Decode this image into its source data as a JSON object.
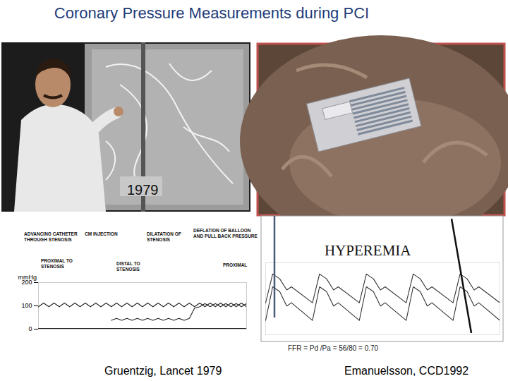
{
  "title": "Coronary Pressure Measurements during PCI",
  "photo_label": "1979",
  "chart_data": [
    {
      "type": "line",
      "caption": "Gruentzig, Lancet 1979",
      "ylabel": "mmHg",
      "xlim": [
        0,
        100
      ],
      "ylim": [
        0,
        200
      ],
      "yticks": [
        0,
        100,
        200
      ],
      "tick_labels": "y",
      "annotations": [
        [
          "ADVANCING CATHETER",
          "THROUGH STENOSIS"
        ],
        [
          "CM INJECTION"
        ],
        [
          "DILATATION OF",
          "STENOSIS"
        ],
        [
          "DEFLATION OF BALLOON",
          "AND PULL BACK PRESSURE"
        ],
        [
          "PROXIMAL TO",
          "STENOSIS"
        ],
        [
          "DISTAL TO",
          "STENOSIS"
        ],
        [
          "PROXIMAL"
        ]
      ],
      "series": [
        {
          "color": "#222222",
          "x": [
            0,
            2.5,
            5,
            7.5,
            10,
            12.5,
            15,
            17.5,
            20,
            22.5,
            25,
            27.5,
            30,
            32.5,
            35,
            37.5,
            40,
            42.5,
            45,
            47.5,
            50,
            52.5,
            55,
            57.5,
            60,
            62.5,
            65,
            67.5,
            70,
            72.5,
            75,
            77.5,
            80,
            82.5,
            85,
            87.5,
            90,
            92.5,
            95,
            97.5,
            100
          ],
          "values": [
            96,
            112,
            96,
            112,
            96,
            112,
            96,
            112,
            96,
            112,
            96,
            112,
            96,
            112,
            96,
            112,
            96,
            112,
            96,
            112,
            96,
            112,
            96,
            112,
            96,
            112,
            96,
            112,
            96,
            112,
            96,
            112,
            96,
            112,
            96,
            112,
            96,
            112,
            96,
            112,
            96
          ]
        },
        {
          "color": "#222222",
          "x": [
            35,
            37.5,
            40,
            42.5,
            45,
            47.5,
            50,
            52.5,
            55,
            57.5,
            60,
            62.5,
            65,
            67.5,
            70,
            72.5,
            75,
            77.5,
            80,
            82.5,
            85,
            87.5,
            90,
            92.5,
            95,
            97.5,
            100
          ],
          "values": [
            38,
            46,
            38,
            46,
            38,
            46,
            38,
            46,
            38,
            46,
            38,
            46,
            38,
            46,
            38,
            46,
            90,
            96,
            110,
            96,
            110,
            96,
            110,
            96,
            110,
            96,
            110
          ]
        },
        {
          "color": "#222222",
          "x": [
            0,
            100
          ],
          "values": [
            3,
            3
          ]
        }
      ]
    },
    {
      "type": "line",
      "caption": "Emanuelsson, CCD1992",
      "annotation": "HYPEREMIA",
      "formula": "FFR = Pd /Pa = 56/80 = 0.70",
      "xlim": [
        0,
        100
      ],
      "ylim": [
        30,
        120
      ],
      "tick_labels": false,
      "series": [
        {
          "color": "#333333",
          "x": [
            0,
            3,
            6,
            9,
            11,
            20,
            23,
            26,
            29,
            31,
            40,
            43,
            46,
            49,
            51,
            60,
            63,
            66,
            69,
            71,
            80,
            83,
            86,
            89,
            91,
            100
          ],
          "values": [
            70,
            106,
            100,
            86,
            90,
            70,
            106,
            100,
            86,
            90,
            70,
            106,
            100,
            86,
            90,
            70,
            106,
            100,
            86,
            90,
            70,
            106,
            100,
            86,
            90,
            70
          ]
        },
        {
          "color": "#333333",
          "x": [
            0,
            3,
            6,
            9,
            11,
            20,
            23,
            26,
            29,
            31,
            40,
            43,
            46,
            49,
            51,
            60,
            63,
            66,
            69,
            71,
            80,
            83,
            86,
            89,
            91,
            100
          ],
          "values": [
            48,
            90,
            84,
            66,
            70,
            48,
            90,
            84,
            66,
            70,
            48,
            90,
            84,
            66,
            70,
            48,
            90,
            84,
            66,
            70,
            48,
            90,
            84,
            66,
            70,
            48
          ]
        }
      ]
    }
  ]
}
